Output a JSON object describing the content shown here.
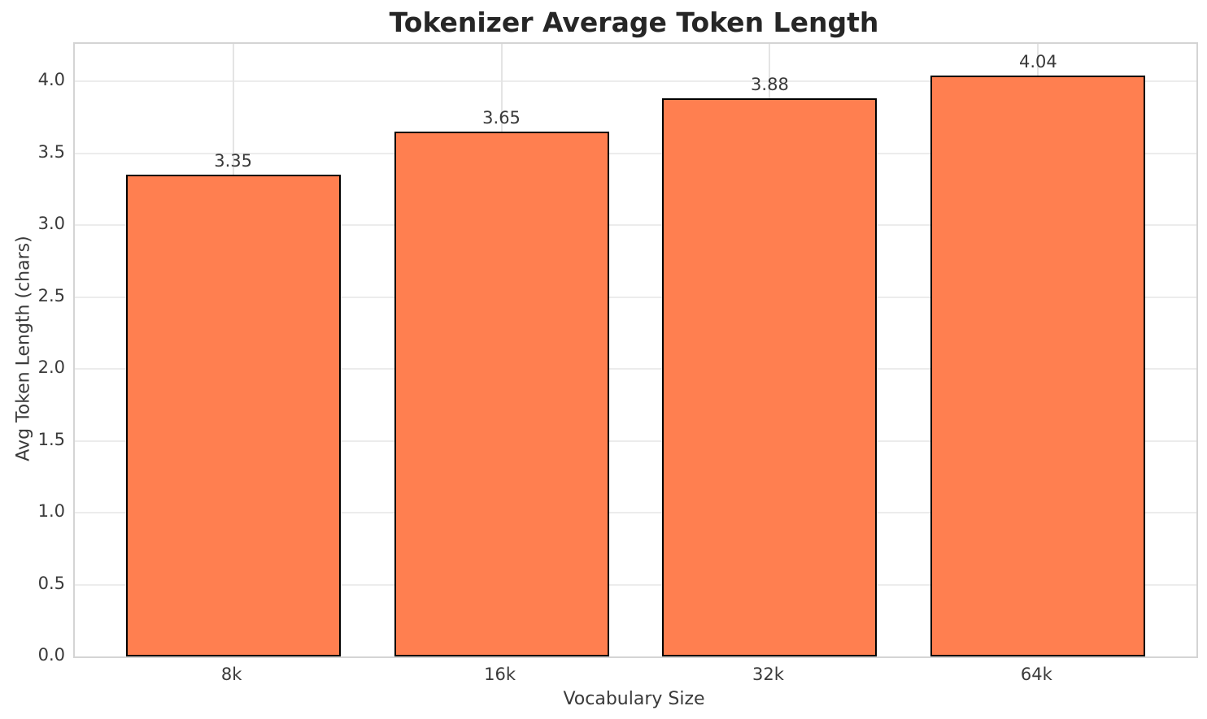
{
  "chart_data": {
    "type": "bar",
    "title": "Tokenizer Average Token Length",
    "xlabel": "Vocabulary Size",
    "ylabel": "Avg Token Length (chars)",
    "categories": [
      "8k",
      "16k",
      "32k",
      "64k"
    ],
    "values": [
      3.35,
      3.65,
      3.88,
      4.04
    ],
    "value_labels": [
      "3.35",
      "3.65",
      "3.88",
      "4.04"
    ],
    "y_tick_values": [
      0.0,
      0.5,
      1.0,
      1.5,
      2.0,
      2.5,
      3.0,
      3.5,
      4.0
    ],
    "y_tick_labels": [
      "0.0",
      "0.5",
      "1.0",
      "1.5",
      "2.0",
      "2.5",
      "3.0",
      "3.5",
      "4.0"
    ],
    "ylim": [
      0,
      4.26
    ],
    "xlim": [
      -0.59,
      3.59
    ],
    "bar_width_data_units": 0.8,
    "grid": true,
    "legend": null,
    "bar_color": "#FF7F50",
    "bar_edge_color": "#000000",
    "grid_color": "#ececec",
    "spine_color": "#d4d4d4",
    "title_color": "#262626",
    "text_color": "#3a3a3a"
  }
}
